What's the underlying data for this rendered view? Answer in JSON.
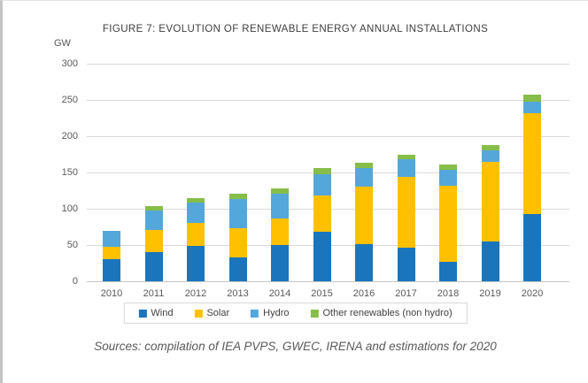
{
  "chart_data": {
    "type": "bar",
    "stacked": true,
    "title": "FIGURE 7: EVOLUTION OF RENEWABLE ENERGY ANNUAL INSTALLATIONS",
    "ylabel": "GW",
    "xlabel": "",
    "ylim": [
      0,
      300
    ],
    "ytick_step": 50,
    "grid": true,
    "legend_position": "bottom",
    "categories": [
      "2010",
      "2011",
      "2012",
      "2013",
      "2014",
      "2015",
      "2016",
      "2017",
      "2018",
      "2019",
      "2020"
    ],
    "series": [
      {
        "name": "Wind",
        "color": "#1B75BC",
        "values": [
          30,
          40,
          49,
          33,
          50,
          68,
          51,
          46,
          27,
          55,
          93
        ]
      },
      {
        "name": "Solar",
        "color": "#FFC000",
        "values": [
          17,
          31,
          31,
          40,
          37,
          50,
          79,
          98,
          105,
          110,
          139
        ]
      },
      {
        "name": "Hydro",
        "color": "#54A7DA",
        "values": [
          23,
          27,
          29,
          40,
          34,
          29,
          26,
          24,
          22,
          16,
          16
        ]
      },
      {
        "name": "Other renewables (non hydro)",
        "color": "#86BE49",
        "values": [
          0,
          6,
          6,
          8,
          7,
          9,
          8,
          6,
          7,
          7,
          9
        ]
      }
    ],
    "totals": [
      70,
      104,
      115,
      121,
      128,
      156,
      164,
      174,
      161,
      188,
      257
    ]
  },
  "source_text": "Sources: compilation of IEA PVPS, GWEC, IRENA and estimations for 2020"
}
